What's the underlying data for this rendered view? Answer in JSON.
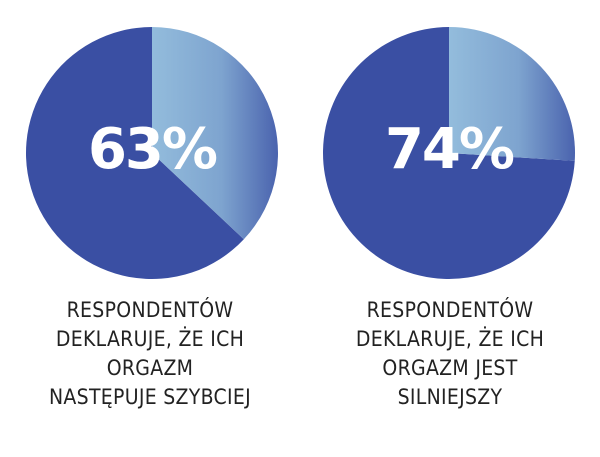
{
  "chart_data": [
    {
      "type": "pie",
      "label": "63%",
      "values": [
        63,
        37
      ],
      "colors": [
        "#3a4fa3",
        "#8fb6d8"
      ],
      "caption": [
        "RESPONDENTÓW",
        "DEKLARUJE, ŻE ICH",
        "ORGAZM",
        "NASTĘPUJE SZYBCIEJ"
      ]
    },
    {
      "type": "pie",
      "label": "74%",
      "values": [
        74,
        26
      ],
      "colors": [
        "#3a4fa3",
        "#8fb6d8"
      ],
      "caption": [
        "RESPONDENTÓW",
        "DEKLARUJE, ŻE ICH",
        "ORGAZM JEST",
        "SILNIEJSZY"
      ]
    }
  ]
}
